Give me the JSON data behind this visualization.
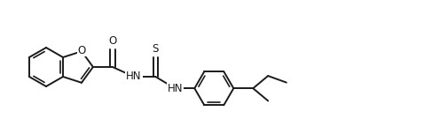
{
  "line_color": "#1a1a1a",
  "bg_color": "#ffffff",
  "lw": 1.4,
  "lw_inner": 1.2,
  "fs": 8.5,
  "fig_width": 4.78,
  "fig_height": 1.52,
  "dpi": 100,
  "O_label": "O",
  "S_label": "S",
  "NH1_label": "HN",
  "NH2_label": "HN"
}
